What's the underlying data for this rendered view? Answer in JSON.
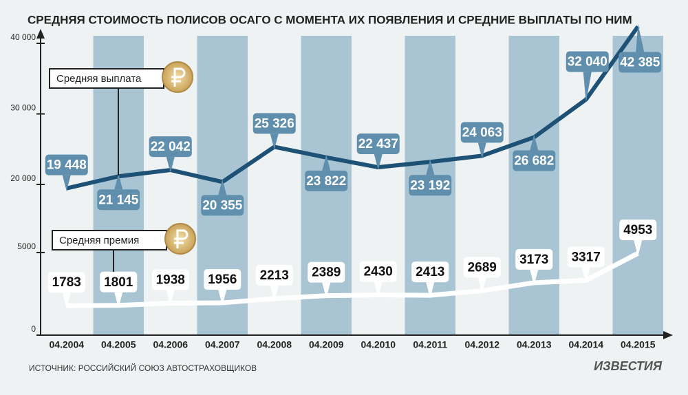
{
  "chart_data": {
    "type": "line",
    "title": "СРЕДНЯЯ СТОИМОСТЬ ПОЛИСОВ ОСАГО С МОМЕНТА ИХ ПОЯВЛЕНИЯ И СРЕДНИЕ ВЫПЛАТЫ ПО НИМ",
    "categories": [
      "04.2004",
      "04.2005",
      "04.2006",
      "04.2007",
      "04.2008",
      "04.2009",
      "04.2010",
      "04.2011",
      "04.2012",
      "04.2013",
      "04.2014",
      "04.2015"
    ],
    "series": [
      {
        "name": "Средняя выплата",
        "color": "#1d5175",
        "label_color": "#5f8fad",
        "values": [
          19448,
          21145,
          22042,
          20355,
          25326,
          23822,
          22437,
          23192,
          24063,
          26682,
          32040,
          42385
        ],
        "value_labels": [
          "19 448",
          "21 145",
          "22 042",
          "20 355",
          "25 326",
          "23 822",
          "22 437",
          "23 192",
          "24 063",
          "26 682",
          "32 040",
          "42 385"
        ]
      },
      {
        "name": "Средняя премия",
        "color": "#ffffff",
        "axis": "y2",
        "values": [
          1783,
          1801,
          1938,
          1956,
          2213,
          2389,
          2430,
          2413,
          2689,
          3173,
          3317,
          4953
        ]
      }
    ],
    "ylim": [
      20000,
      40000
    ],
    "yticks": [
      {
        "value": 20000,
        "label": "20 000"
      },
      {
        "value": 30000,
        "label": "30 000"
      },
      {
        "value": 40000,
        "label": "40 000"
      }
    ],
    "y2lim": [
      0,
      5000
    ],
    "y2ticks": [
      0,
      5000
    ],
    "source": "ИСТОЧНИК: РОССИЙСКИЙ СОЮЗ АВТОСТРАХОВЩИКОВ",
    "logo": "ИЗВЕСТИЯ"
  }
}
